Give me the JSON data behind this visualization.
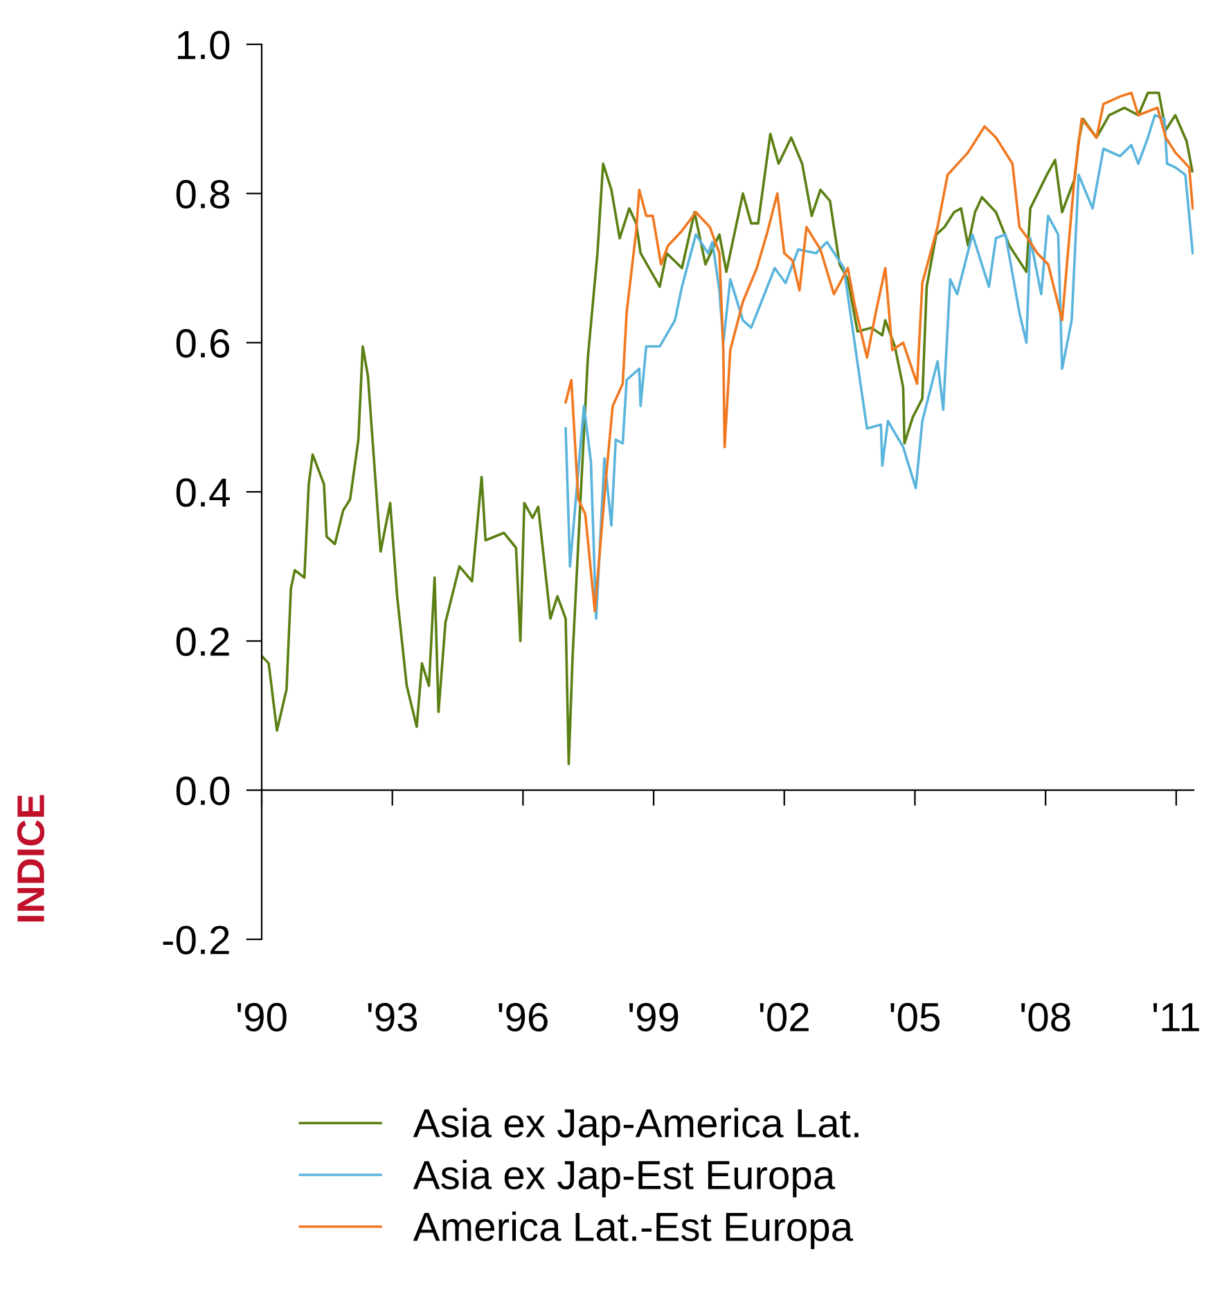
{
  "chart_data": {
    "type": "line",
    "ylabel": "INDICE",
    "xlim": [
      1990,
      2011.4
    ],
    "ylim": [
      -0.2,
      1.0
    ],
    "xticks": [
      {
        "value": 1990,
        "label": "'90"
      },
      {
        "value": 1993,
        "label": "'93"
      },
      {
        "value": 1996,
        "label": "'96"
      },
      {
        "value": 1999,
        "label": "'99"
      },
      {
        "value": 2002,
        "label": "'02"
      },
      {
        "value": 2005,
        "label": "'05"
      },
      {
        "value": 2008,
        "label": "'08"
      },
      {
        "value": 2011,
        "label": "'11"
      }
    ],
    "yticks": [
      {
        "value": -0.2,
        "label": "-0.2"
      },
      {
        "value": 0,
        "label": "0.0"
      },
      {
        "value": 0.2,
        "label": "0.2"
      },
      {
        "value": 0.4,
        "label": "0.4"
      },
      {
        "value": 0.6,
        "label": "0.6"
      },
      {
        "value": 0.8,
        "label": "0.8"
      },
      {
        "value": 1.0,
        "label": "1.0"
      }
    ],
    "legend": "bottom",
    "marker": "none",
    "line_style": "solid",
    "series": [
      {
        "name": "Asia ex Jap-America Lat.",
        "color": "#5a7f12",
        "x": [
          1990.0,
          1990.16,
          1990.35,
          1990.57,
          1990.67,
          1990.76,
          1990.98,
          1991.08,
          1991.17,
          1991.43,
          1991.49,
          1991.68,
          1991.87,
          1992.03,
          1992.22,
          1992.32,
          1992.44,
          1992.73,
          1992.95,
          1993.11,
          1993.33,
          1993.56,
          1993.68,
          1993.84,
          1993.97,
          1994.06,
          1994.22,
          1994.54,
          1994.83,
          1995.05,
          1995.14,
          1995.56,
          1995.84,
          1995.94,
          1996.03,
          1996.22,
          1996.35,
          1996.63,
          1996.79,
          1996.98,
          1997.05,
          1997.14,
          1997.33,
          1997.49,
          1997.71,
          1997.84,
          1998.03,
          1998.22,
          1998.44,
          1998.6,
          1998.7,
          1999.14,
          1999.3,
          1999.65,
          1999.94,
          2000.19,
          2000.51,
          2000.67,
          2001.05,
          2001.24,
          2001.4,
          2001.68,
          2001.87,
          2002.16,
          2002.41,
          2002.63,
          2002.83,
          2003.05,
          2003.27,
          2003.46,
          2003.68,
          2004.0,
          2004.25,
          2004.32,
          2004.54,
          2004.73,
          2004.76,
          2004.95,
          2005.17,
          2005.27,
          2005.49,
          2005.68,
          2005.9,
          2006.06,
          2006.22,
          2006.38,
          2006.54,
          2006.86,
          2007.17,
          2007.56,
          2007.65,
          2008.03,
          2008.22,
          2008.38,
          2008.67,
          2008.76,
          2008.86,
          2009.17,
          2009.46,
          2009.81,
          2010.13,
          2010.35,
          2010.6,
          2010.76,
          2010.98,
          2011.24,
          2011.37
        ],
        "values": [
          0.18,
          0.17,
          0.08,
          0.135,
          0.27,
          0.295,
          0.285,
          0.41,
          0.45,
          0.41,
          0.34,
          0.33,
          0.375,
          0.39,
          0.47,
          0.595,
          0.555,
          0.32,
          0.385,
          0.26,
          0.14,
          0.085,
          0.17,
          0.14,
          0.285,
          0.105,
          0.225,
          0.3,
          0.28,
          0.42,
          0.335,
          0.345,
          0.325,
          0.2,
          0.385,
          0.365,
          0.38,
          0.23,
          0.26,
          0.23,
          0.035,
          0.18,
          0.4,
          0.58,
          0.72,
          0.84,
          0.805,
          0.74,
          0.78,
          0.76,
          0.72,
          0.675,
          0.72,
          0.7,
          0.775,
          0.705,
          0.745,
          0.695,
          0.8,
          0.76,
          0.76,
          0.88,
          0.84,
          0.875,
          0.84,
          0.77,
          0.805,
          0.79,
          0.705,
          0.685,
          0.615,
          0.62,
          0.61,
          0.63,
          0.595,
          0.54,
          0.465,
          0.5,
          0.525,
          0.675,
          0.745,
          0.755,
          0.775,
          0.78,
          0.73,
          0.775,
          0.795,
          0.775,
          0.73,
          0.695,
          0.78,
          0.825,
          0.845,
          0.775,
          0.82,
          0.87,
          0.9,
          0.875,
          0.905,
          0.915,
          0.905,
          0.935,
          0.935,
          0.885,
          0.905,
          0.87,
          0.83
        ]
      },
      {
        "name": "Asia ex Jap-Est Europa",
        "color": "#5ab4dc",
        "x": [
          1996.98,
          1997.08,
          1997.4,
          1997.56,
          1997.68,
          1997.87,
          1998.03,
          1998.13,
          1998.29,
          1998.38,
          1998.67,
          1998.7,
          1998.83,
          1999.14,
          1999.49,
          1999.65,
          1999.97,
          2000.25,
          2000.35,
          2000.51,
          2000.6,
          2000.76,
          2001.05,
          2001.24,
          2001.78,
          2002.03,
          2002.32,
          2002.73,
          2002.98,
          2003.37,
          2003.75,
          2003.9,
          2004.22,
          2004.25,
          2004.38,
          2004.73,
          2005.02,
          2005.17,
          2005.52,
          2005.65,
          2005.81,
          2005.97,
          2006.32,
          2006.7,
          2006.86,
          2007.08,
          2007.4,
          2007.56,
          2007.65,
          2007.9,
          2008.06,
          2008.29,
          2008.38,
          2008.6,
          2008.76,
          2009.08,
          2009.33,
          2009.71,
          2009.97,
          2010.13,
          2010.35,
          2010.51,
          2010.73,
          2010.79,
          2010.98,
          2011.21,
          2011.38
        ],
        "values": [
          0.485,
          0.3,
          0.515,
          0.44,
          0.23,
          0.445,
          0.355,
          0.47,
          0.465,
          0.55,
          0.565,
          0.515,
          0.595,
          0.595,
          0.63,
          0.675,
          0.745,
          0.72,
          0.735,
          0.67,
          0.6,
          0.685,
          0.63,
          0.62,
          0.7,
          0.68,
          0.725,
          0.72,
          0.735,
          0.7,
          0.545,
          0.485,
          0.49,
          0.435,
          0.495,
          0.46,
          0.405,
          0.495,
          0.575,
          0.51,
          0.685,
          0.665,
          0.745,
          0.675,
          0.74,
          0.745,
          0.64,
          0.6,
          0.74,
          0.665,
          0.77,
          0.745,
          0.565,
          0.63,
          0.825,
          0.78,
          0.86,
          0.85,
          0.865,
          0.84,
          0.875,
          0.905,
          0.9,
          0.84,
          0.835,
          0.825,
          0.72
        ]
      },
      {
        "name": "America Lat.-Est Europa",
        "color": "#f07820",
        "x": [
          1996.98,
          1997.11,
          1997.27,
          1997.43,
          1997.65,
          1997.75,
          1997.9,
          1998.06,
          1998.29,
          1998.38,
          1998.6,
          1998.67,
          1998.83,
          1998.98,
          1999.17,
          1999.33,
          1999.65,
          1999.97,
          2000.29,
          2000.51,
          2000.6,
          2000.63,
          2000.76,
          2001.05,
          2001.37,
          2001.62,
          2001.84,
          2002.0,
          2002.19,
          2002.35,
          2002.51,
          2002.83,
          2003.14,
          2003.46,
          2003.62,
          2003.9,
          2004.1,
          2004.32,
          2004.48,
          2004.73,
          2005.05,
          2005.17,
          2005.52,
          2005.75,
          2006.22,
          2006.6,
          2006.86,
          2007.24,
          2007.4,
          2007.59,
          2007.81,
          2008.06,
          2008.38,
          2008.67,
          2008.83,
          2009.17,
          2009.33,
          2009.71,
          2009.97,
          2010.13,
          2010.57,
          2010.76,
          2010.98,
          2011.3,
          2011.38
        ],
        "values": [
          0.52,
          0.55,
          0.39,
          0.37,
          0.24,
          0.31,
          0.415,
          0.515,
          0.545,
          0.64,
          0.75,
          0.805,
          0.77,
          0.77,
          0.705,
          0.73,
          0.75,
          0.775,
          0.755,
          0.72,
          0.59,
          0.46,
          0.59,
          0.655,
          0.7,
          0.75,
          0.8,
          0.72,
          0.71,
          0.67,
          0.755,
          0.725,
          0.665,
          0.7,
          0.65,
          0.58,
          0.64,
          0.7,
          0.59,
          0.6,
          0.545,
          0.68,
          0.755,
          0.825,
          0.855,
          0.89,
          0.875,
          0.84,
          0.755,
          0.74,
          0.72,
          0.705,
          0.63,
          0.825,
          0.9,
          0.875,
          0.92,
          0.93,
          0.935,
          0.905,
          0.915,
          0.875,
          0.855,
          0.835,
          0.78
        ]
      }
    ]
  }
}
